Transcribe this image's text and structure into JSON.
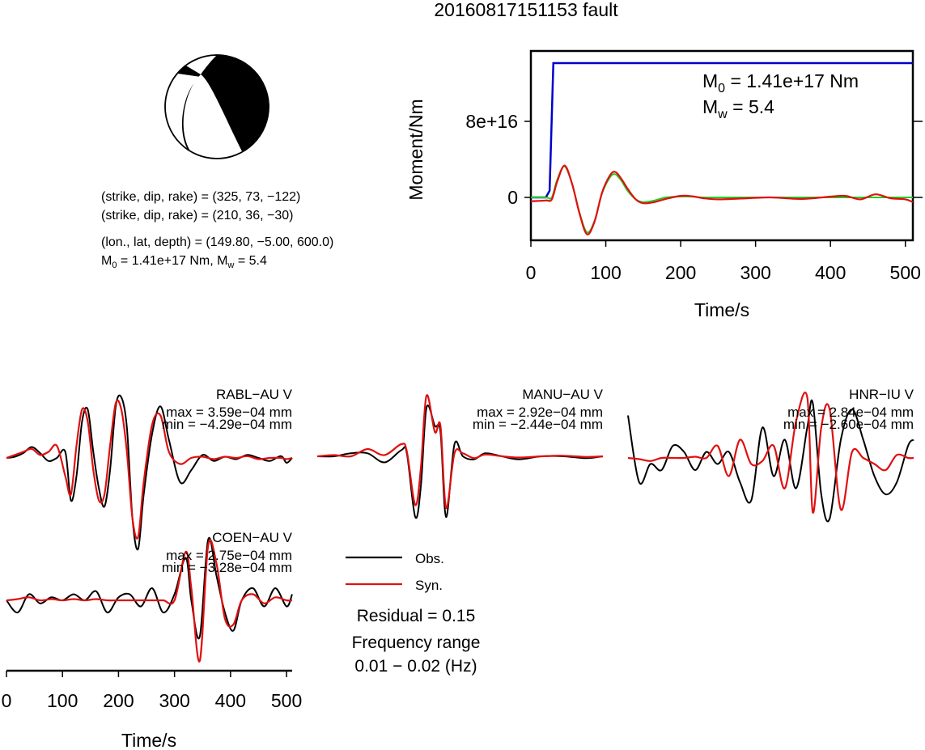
{
  "figure": {
    "title": "20160817151153 fault"
  },
  "beachball": {
    "line1": "(strike, dip, rake) = (325, 73, −122)",
    "line2": "(strike, dip, rake) = (210, 36, −30)",
    "line3": "(lon., lat, depth) = (149.80, −5.00, 600.0)",
    "m0_text": "M",
    "m0_sub": "0",
    "m0_val": " = 1.41e+17 Nm, M",
    "mw_sub": "w",
    "mw_val": " = 5.4"
  },
  "moment_panel": {
    "m0_label": "M",
    "m0_sub": "0",
    "m0_value": " = 1.41e+17 Nm",
    "mw_label": "M",
    "mw_sub": "w",
    "mw_value": " = 5.4"
  },
  "legend": {
    "obs": "Obs.",
    "syn": "Syn.",
    "residual": "Residual = 0.15",
    "freq_title": "Frequency range",
    "freq_range": "0.01 − 0.02 (Hz)"
  },
  "colors": {
    "observed": "#000000",
    "synthetic": "#e01010",
    "cumulative_moment": "#0000cc",
    "source_function": "#22cc22"
  },
  "chart_data": [
    {
      "type": "line",
      "title": "",
      "xlabel": "Time/s",
      "ylabel": "Moment/Nm",
      "xlim": [
        0,
        510
      ],
      "xticks": [
        0,
        100,
        200,
        300,
        400,
        500
      ],
      "ytick_labels": [
        "0",
        "8e+16"
      ],
      "series": [
        {
          "name": "cumulative moment",
          "x": [
            0,
            20,
            25,
            30,
            510
          ],
          "y": [
            0,
            0,
            0.05,
            1.0,
            1.0
          ]
        },
        {
          "name": "moment rate (green)",
          "x": [
            0,
            20,
            28,
            35,
            45,
            55,
            65,
            75,
            85,
            95,
            105,
            112,
            120,
            130,
            140,
            150,
            165,
            180,
            200,
            215,
            230,
            250,
            280,
            320,
            360,
            400,
            440,
            480,
            510
          ],
          "y": [
            0,
            0,
            0,
            0.45,
            0.8,
            0.35,
            -0.4,
            -0.9,
            -0.6,
            0.1,
            0.5,
            0.6,
            0.45,
            0.15,
            -0.05,
            -0.12,
            -0.08,
            0.0,
            0.02,
            0.02,
            0.0,
            0.0,
            0.0,
            0.0,
            0.0,
            0.0,
            0.0,
            0.0,
            0.0
          ]
        },
        {
          "name": "moment rate (red)",
          "x": [
            0,
            20,
            28,
            35,
            45,
            55,
            65,
            75,
            85,
            95,
            105,
            112,
            120,
            130,
            140,
            150,
            165,
            180,
            200,
            215,
            230,
            250,
            280,
            320,
            360,
            400,
            420,
            440,
            460,
            480,
            500,
            510
          ],
          "y": [
            -0.1,
            -0.08,
            -0.05,
            0.4,
            0.82,
            0.35,
            -0.42,
            -0.95,
            -0.62,
            0.12,
            0.55,
            0.66,
            0.5,
            0.2,
            -0.05,
            -0.15,
            -0.12,
            -0.04,
            0.04,
            0.03,
            -0.02,
            -0.05,
            -0.03,
            0.0,
            -0.04,
            0.02,
            0.04,
            -0.05,
            0.08,
            -0.02,
            -0.05,
            -0.12
          ]
        }
      ]
    },
    {
      "type": "line",
      "station": "RABL−AU V",
      "max_text": "max = 3.59e−04 mm",
      "min_text": "min = −4.29e−04 mm",
      "xlim": [
        0,
        510
      ],
      "series": [
        {
          "name": "Obs.",
          "x": [
            0,
            15,
            30,
            45,
            60,
            75,
            90,
            105,
            115,
            125,
            135,
            145,
            155,
            165,
            175,
            185,
            195,
            205,
            215,
            225,
            235,
            245,
            260,
            275,
            290,
            310,
            330,
            350,
            370,
            390,
            410,
            430,
            450,
            470,
            490,
            500,
            510
          ],
          "y": [
            0,
            0.02,
            0.08,
            0.18,
            0.08,
            -0.05,
            0,
            0.1,
            -0.7,
            -0.3,
            0.6,
            0.8,
            0.1,
            -0.5,
            -0.8,
            -0.2,
            0.85,
            1.0,
            0.5,
            -1.0,
            -1.5,
            -0.6,
            0.4,
            0.85,
            0.3,
            -0.4,
            -0.2,
            0.05,
            -0.05,
            0.02,
            -0.02,
            0.05,
            0.0,
            -0.05,
            0.03,
            -0.08,
            0.0
          ]
        },
        {
          "name": "Syn.",
          "x": [
            0,
            15,
            30,
            45,
            60,
            75,
            90,
            105,
            115,
            125,
            135,
            145,
            155,
            165,
            175,
            185,
            195,
            205,
            215,
            225,
            235,
            245,
            260,
            275,
            290,
            310,
            330,
            350,
            370,
            390,
            410,
            430,
            450,
            470,
            490,
            500,
            510
          ],
          "y": [
            0,
            0.05,
            0.1,
            0.15,
            0.05,
            0.1,
            0.2,
            -0.3,
            -0.6,
            0.2,
            0.8,
            0.6,
            -0.2,
            -0.7,
            -0.6,
            0.2,
            0.9,
            0.8,
            0.1,
            -1.0,
            -1.3,
            -0.4,
            0.55,
            0.7,
            0.1,
            -0.1,
            0.0,
            0.02,
            -0.02,
            0.02,
            0.0,
            0.03,
            -0.02,
            0.0,
            0.0,
            -0.02,
            0.0
          ]
        }
      ]
    },
    {
      "type": "line",
      "station": "MANU−AU V",
      "max_text": "max = 2.92e−04 mm",
      "min_text": "min = −2.44e−04 mm",
      "xlim": [
        0,
        510
      ],
      "series": [
        {
          "name": "Obs.",
          "x": [
            0,
            30,
            60,
            90,
            120,
            150,
            160,
            175,
            185,
            195,
            210,
            220,
            230,
            245,
            260,
            280,
            300,
            330,
            360,
            400,
            440,
            480,
            510
          ],
          "y": [
            0,
            0.0,
            0.05,
            0.05,
            -0.1,
            0.1,
            0.05,
            -1.0,
            -0.5,
            0.8,
            0.5,
            0.4,
            -1.0,
            0.2,
            0.0,
            -0.05,
            0.05,
            0.0,
            -0.05,
            0.0,
            0.0,
            -0.03,
            0.0
          ]
        },
        {
          "name": "Syn.",
          "x": [
            0,
            30,
            60,
            90,
            120,
            150,
            160,
            175,
            185,
            195,
            210,
            220,
            230,
            245,
            260,
            280,
            300,
            330,
            360,
            400,
            440,
            480,
            510
          ],
          "y": [
            0,
            0.02,
            0.0,
            0.12,
            0.02,
            0.2,
            0.08,
            -0.8,
            -0.2,
            1.0,
            0.4,
            0.5,
            -0.85,
            0.05,
            0.05,
            -0.03,
            0.03,
            0.0,
            -0.02,
            0.0,
            0.01,
            -0.01,
            0.0
          ]
        }
      ]
    },
    {
      "type": "line",
      "station": "HNR−IU V",
      "max_text": "max = 2.84e−04 mm",
      "min_text": "min = −2.60e−04 mm",
      "xlim": [
        0,
        510
      ],
      "series": [
        {
          "name": "Obs.",
          "x": [
            0,
            20,
            40,
            60,
            80,
            100,
            120,
            140,
            160,
            180,
            200,
            220,
            240,
            260,
            280,
            300,
            320,
            330,
            345,
            360,
            380,
            400,
            420,
            440,
            460,
            480,
            500,
            510
          ],
          "y": [
            0.7,
            -0.4,
            -0.1,
            -0.2,
            0.2,
            0.1,
            -0.2,
            0.1,
            -0.1,
            0.1,
            -0.4,
            -0.7,
            0.5,
            -0.3,
            0.3,
            -0.5,
            0.5,
            0.9,
            -0.6,
            -1.0,
            0.3,
            0.8,
            0.3,
            -0.3,
            -0.6,
            -0.4,
            0.2,
            0.3
          ]
        },
        {
          "name": "Syn.",
          "x": [
            0,
            20,
            40,
            60,
            80,
            100,
            120,
            140,
            160,
            180,
            200,
            220,
            240,
            260,
            280,
            300,
            320,
            330,
            345,
            360,
            380,
            400,
            420,
            440,
            460,
            480,
            500,
            510
          ],
          "y": [
            0.0,
            -0.02,
            -0.05,
            0.0,
            0.0,
            0.0,
            0.02,
            0.0,
            0.2,
            -0.3,
            0.3,
            -0.1,
            -0.05,
            0.2,
            -0.5,
            0.6,
            1.0,
            -0.9,
            0.5,
            0.8,
            -0.85,
            0.1,
            0.0,
            -0.1,
            -0.2,
            0.05,
            0.0,
            0.0
          ]
        }
      ]
    },
    {
      "type": "line",
      "station": "COEN−AU V",
      "max_text": "max = 2.75e−04 mm",
      "min_text": "min = −3.28e−04 mm",
      "xlabel": "Time/s",
      "xlim": [
        0,
        510
      ],
      "xticks": [
        0,
        100,
        200,
        300,
        400,
        500
      ],
      "series": [
        {
          "name": "Obs.",
          "x": [
            0,
            20,
            40,
            60,
            80,
            100,
            120,
            140,
            160,
            180,
            200,
            220,
            240,
            260,
            280,
            300,
            320,
            330,
            345,
            360,
            375,
            390,
            405,
            420,
            440,
            460,
            480,
            500,
            510
          ],
          "y": [
            0.0,
            -0.2,
            0.1,
            -0.05,
            0.05,
            0.0,
            0.1,
            0.0,
            0.15,
            -0.2,
            0.05,
            0.1,
            -0.1,
            0.2,
            -0.2,
            0.1,
            0.7,
            0.0,
            -0.6,
            1.0,
            0.4,
            -0.2,
            -0.5,
            0.0,
            0.2,
            -0.1,
            0.2,
            -0.1,
            0.1
          ]
        },
        {
          "name": "Syn.",
          "x": [
            0,
            20,
            40,
            60,
            80,
            100,
            120,
            140,
            160,
            180,
            200,
            220,
            240,
            260,
            280,
            300,
            320,
            330,
            345,
            360,
            375,
            390,
            405,
            420,
            440,
            460,
            480,
            500,
            510
          ],
          "y": [
            0.0,
            0.02,
            0.05,
            0.0,
            0.02,
            0.0,
            0.02,
            0.0,
            0.02,
            0.0,
            0.0,
            0.0,
            0.0,
            0.0,
            0.0,
            0.0,
            0.8,
            0.2,
            -1.0,
            0.9,
            0.6,
            -0.3,
            -0.4,
            0.0,
            0.1,
            -0.05,
            0.05,
            0.0,
            0.0
          ]
        }
      ]
    }
  ]
}
